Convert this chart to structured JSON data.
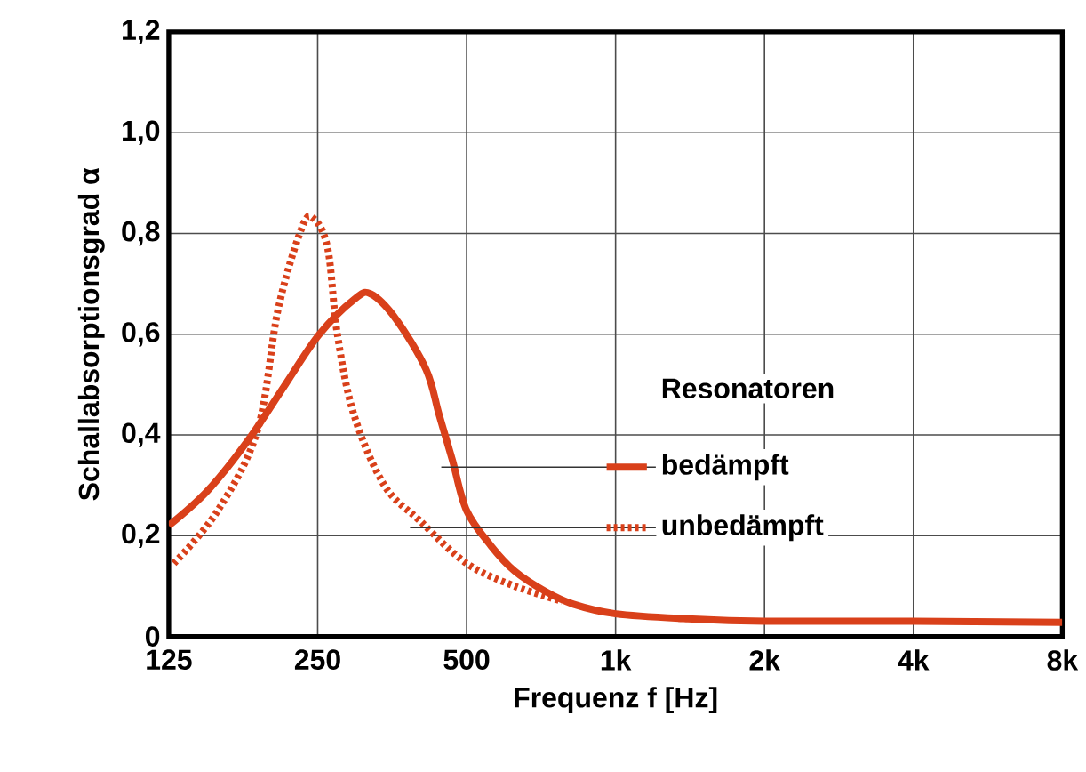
{
  "chart_data": {
    "type": "line",
    "xlabel": "Frequenz  f  [Hz]",
    "ylabel": "Schallabsorptionsgrad α",
    "legend_title": "Resonatoren",
    "log": "x",
    "grid": true,
    "legend": "right",
    "xlim": [
      125,
      8000
    ],
    "ylim": [
      0,
      1.2
    ],
    "xticks": [
      125,
      250,
      500,
      {
        "value": 1000,
        "label": "1k"
      },
      {
        "value": 2000,
        "label": "2k"
      },
      {
        "value": 4000,
        "label": "4k"
      },
      {
        "value": 8000,
        "label": "8k"
      }
    ],
    "yticks": [
      0,
      {
        "value": 0.2,
        "label": "0,2"
      },
      {
        "value": 0.4,
        "label": "0,4"
      },
      {
        "value": 0.6,
        "label": "0,6"
      },
      {
        "value": 0.8,
        "label": "0,8"
      },
      {
        "value": 1.0,
        "label": "1,0"
      },
      {
        "value": 1.2,
        "label": "1,2"
      }
    ],
    "series": [
      {
        "name": "bedämpft",
        "color": "#d9401a",
        "line_style": "solid",
        "x": [
          125,
          150,
          181,
          215,
          252,
          297,
          320,
          360,
          414,
          440,
          468,
          500,
          560,
          625,
          720,
          822,
          1000,
          1400,
          2000,
          4000,
          8000
        ],
        "values": [
          0.22,
          0.29,
          0.39,
          0.5,
          0.6,
          0.67,
          0.68,
          0.63,
          0.53,
          0.44,
          0.35,
          0.25,
          0.18,
          0.13,
          0.09,
          0.064,
          0.045,
          0.035,
          0.03,
          0.03,
          0.028
        ]
      },
      {
        "name": "unbedämpft",
        "color": "#d9401a",
        "line_style": "dotted",
        "x": [
          128,
          157,
          189,
          208,
          232,
          245,
          262,
          274,
          296,
          341,
          402,
          500,
          625,
          780
        ],
        "values": [
          0.145,
          0.25,
          0.41,
          0.65,
          0.81,
          0.83,
          0.77,
          0.6,
          0.44,
          0.3,
          0.23,
          0.145,
          0.1,
          0.07
        ]
      }
    ]
  }
}
